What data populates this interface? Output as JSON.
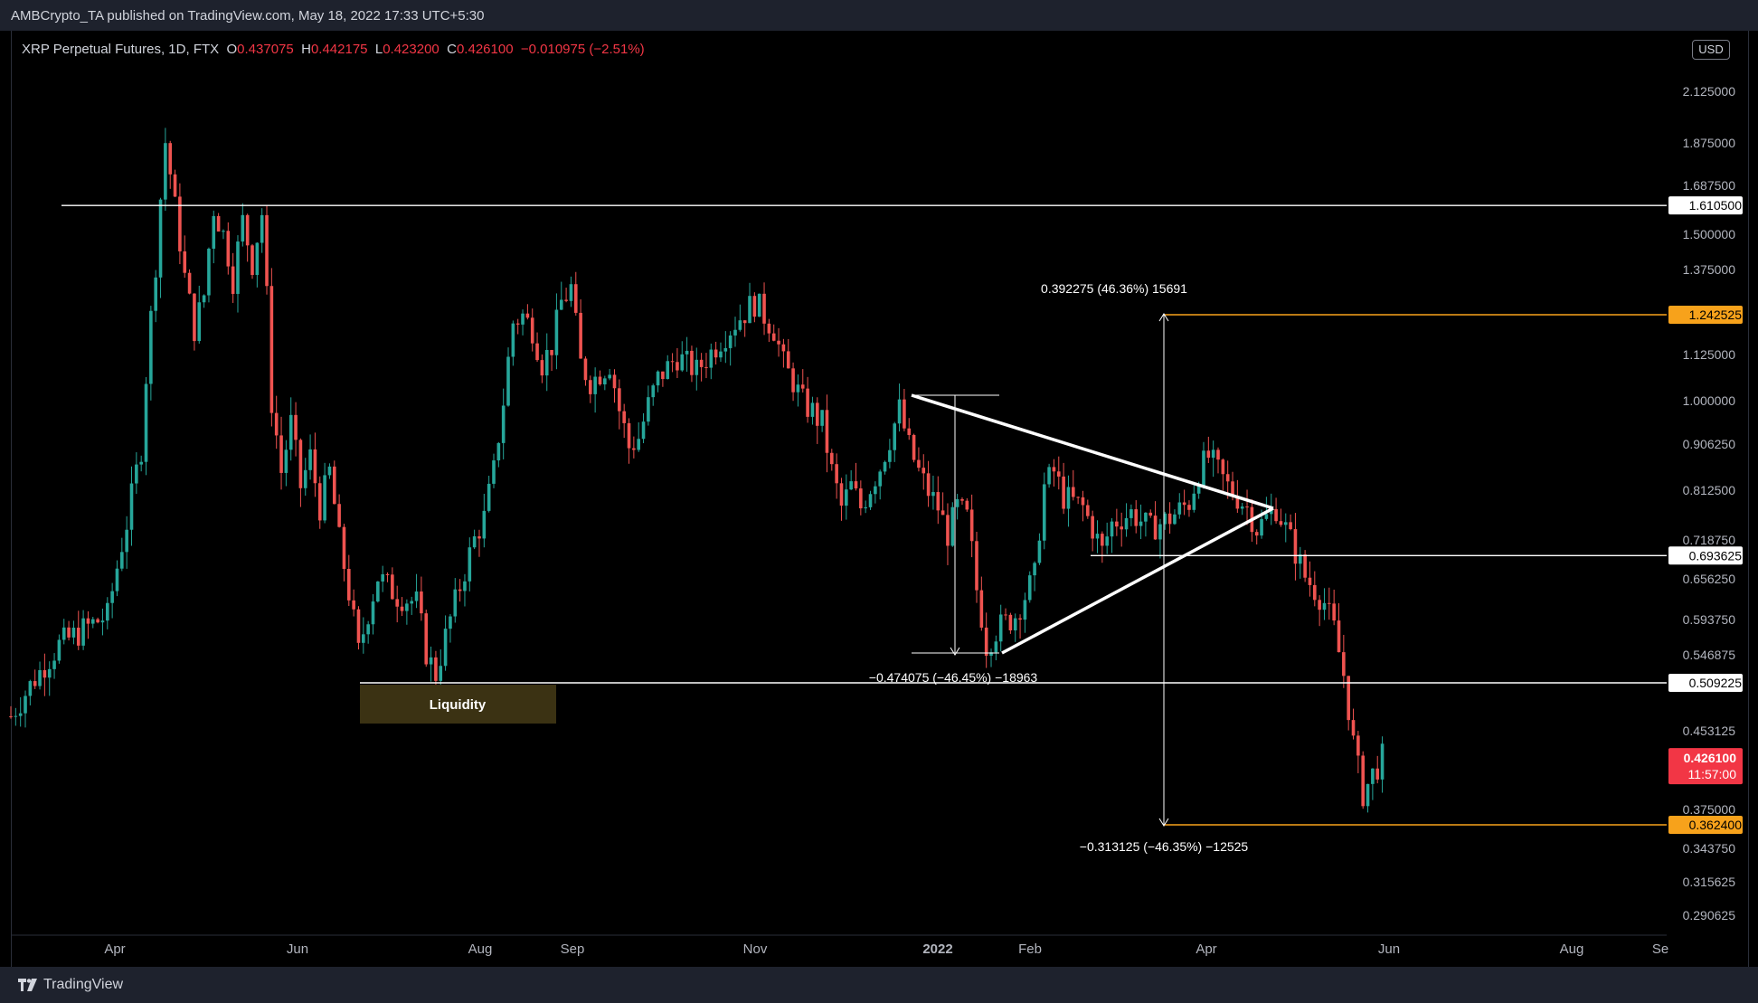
{
  "header": {
    "published": "AMBCrypto_TA published on TradingView.com, May 18, 2022 17:33 UTC+5:30"
  },
  "legend": {
    "symbol": "XRP Perpetual Futures, 1D, FTX",
    "open_label": "O",
    "open": "0.437075",
    "high_label": "H",
    "high": "0.442175",
    "low_label": "L",
    "low": "0.423200",
    "close_label": "C",
    "close": "0.426100",
    "change": "−0.010975 (−2.51%)"
  },
  "currency": "USD",
  "footer": {
    "brand": "TradingView"
  },
  "chart_data": {
    "type": "candlestick",
    "axis_ticks": [
      "2.125000",
      "1.875000",
      "1.687500",
      "1.500000",
      "1.375000",
      "1.125000",
      "1.000000",
      "0.906250",
      "0.812500",
      "0.718750",
      "0.656250",
      "0.593750",
      "0.546875",
      "0.453125",
      "0.375000",
      "0.343750",
      "0.315625",
      "0.290625"
    ],
    "x_ticks": [
      "Apr",
      "Jun",
      "Aug",
      "Sep",
      "Nov",
      "2022",
      "Feb",
      "Apr",
      "Jun",
      "Aug",
      "Se"
    ],
    "horizontal_levels": [
      {
        "value": 1.6105,
        "label": "1.610500",
        "color": "#ffffff"
      },
      {
        "value": 1.242525,
        "label": "1.242525",
        "color": "#f7a21b"
      },
      {
        "value": 0.693625,
        "label": "0.693625",
        "color": "#ffffff"
      },
      {
        "value": 0.509225,
        "label": "0.509225",
        "color": "#ffffff"
      },
      {
        "value": 0.3624,
        "label": "0.362400",
        "color": "#f7a21b"
      }
    ],
    "last_price": {
      "value": "0.426100",
      "countdown": "11:57:00",
      "color": "#f23645"
    },
    "annotations": [
      {
        "text": "0.392275 (46.36%) 15691"
      },
      {
        "text": "−0.474075 (−46.45%) −18963"
      },
      {
        "text": "−0.313125 (−46.35%) −12525"
      },
      {
        "text": "Liquidity"
      }
    ],
    "price_path": [
      [
        0,
        0.47
      ],
      [
        10,
        0.56
      ],
      [
        20,
        0.6
      ],
      [
        24,
        0.75
      ],
      [
        27,
        0.9
      ],
      [
        30,
        1.4
      ],
      [
        32,
        1.88
      ],
      [
        34,
        1.6
      ],
      [
        36,
        1.35
      ],
      [
        38,
        1.2
      ],
      [
        40,
        1.3
      ],
      [
        42,
        1.6
      ],
      [
        44,
        1.5
      ],
      [
        46,
        1.35
      ],
      [
        48,
        1.55
      ],
      [
        50,
        1.4
      ],
      [
        52,
        1.58
      ],
      [
        54,
        1.0
      ],
      [
        56,
        0.85
      ],
      [
        58,
        0.95
      ],
      [
        60,
        0.82
      ],
      [
        62,
        0.88
      ],
      [
        64,
        0.78
      ],
      [
        66,
        0.85
      ],
      [
        68,
        0.72
      ],
      [
        72,
        0.55
      ],
      [
        76,
        0.66
      ],
      [
        80,
        0.63
      ],
      [
        84,
        0.62
      ],
      [
        86,
        0.55
      ],
      [
        88,
        0.52
      ],
      [
        92,
        0.62
      ],
      [
        96,
        0.72
      ],
      [
        98,
        0.76
      ],
      [
        100,
        0.85
      ],
      [
        102,
        1.0
      ],
      [
        104,
        1.22
      ],
      [
        106,
        1.24
      ],
      [
        108,
        1.2
      ],
      [
        110,
        1.1
      ],
      [
        112,
        1.15
      ],
      [
        114,
        1.28
      ],
      [
        116,
        1.32
      ],
      [
        118,
        1.1
      ],
      [
        120,
        1.05
      ],
      [
        124,
        1.1
      ],
      [
        126,
        0.98
      ],
      [
        128,
        0.9
      ],
      [
        130,
        0.92
      ],
      [
        134,
        1.06
      ],
      [
        138,
        1.12
      ],
      [
        142,
        1.08
      ],
      [
        146,
        1.15
      ],
      [
        150,
        1.22
      ],
      [
        154,
        1.28
      ],
      [
        158,
        1.2
      ],
      [
        160,
        1.1
      ],
      [
        164,
        1.0
      ],
      [
        168,
        0.95
      ],
      [
        170,
        0.85
      ],
      [
        172,
        0.78
      ],
      [
        174,
        0.82
      ],
      [
        176,
        0.78
      ],
      [
        180,
        0.86
      ],
      [
        182,
        0.92
      ],
      [
        184,
        0.98
      ],
      [
        186,
        0.9
      ],
      [
        188,
        0.85
      ],
      [
        190,
        0.81
      ],
      [
        192,
        0.78
      ],
      [
        194,
        0.73
      ],
      [
        196,
        0.78
      ],
      [
        198,
        0.76
      ],
      [
        200,
        0.64
      ],
      [
        202,
        0.56
      ],
      [
        204,
        0.58
      ],
      [
        208,
        0.6
      ],
      [
        212,
        0.66
      ],
      [
        214,
        0.82
      ],
      [
        216,
        0.85
      ],
      [
        218,
        0.8
      ],
      [
        222,
        0.78
      ],
      [
        224,
        0.74
      ],
      [
        226,
        0.7
      ],
      [
        228,
        0.75
      ],
      [
        232,
        0.77
      ],
      [
        236,
        0.74
      ],
      [
        240,
        0.76
      ],
      [
        244,
        0.79
      ],
      [
        246,
        0.85
      ],
      [
        248,
        0.88
      ],
      [
        250,
        0.85
      ],
      [
        252,
        0.82
      ],
      [
        254,
        0.8
      ],
      [
        256,
        0.78
      ],
      [
        258,
        0.74
      ],
      [
        260,
        0.76
      ],
      [
        262,
        0.78
      ],
      [
        264,
        0.74
      ],
      [
        266,
        0.7
      ],
      [
        268,
        0.66
      ],
      [
        270,
        0.64
      ],
      [
        272,
        0.62
      ],
      [
        274,
        0.58
      ],
      [
        276,
        0.52
      ],
      [
        278,
        0.44
      ],
      [
        280,
        0.39
      ],
      [
        282,
        0.41
      ],
      [
        284,
        0.426
      ]
    ]
  }
}
